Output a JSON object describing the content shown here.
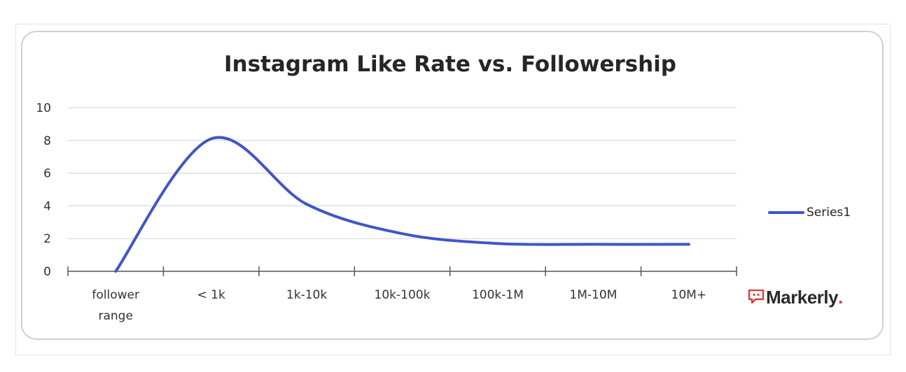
{
  "chart_data": {
    "type": "line",
    "title": "Instagram Like Rate vs. Followership",
    "xlabel": "",
    "ylabel": "",
    "categories": [
      "follower range",
      "< 1k",
      "1k-10k",
      "10k-100k",
      "100k-1M",
      "1M-10M",
      "10M+"
    ],
    "series": [
      {
        "name": "Series1",
        "values": [
          0,
          8.1,
          4.1,
          2.3,
          1.7,
          1.65,
          1.65
        ]
      }
    ],
    "ylim": [
      0,
      10
    ],
    "yticks": [
      0,
      2,
      4,
      6,
      8,
      10
    ],
    "grid": true,
    "smooth": true,
    "legend_position": "right",
    "line_color": "#4055c9"
  },
  "branding": {
    "logo_text": "Markerly",
    "logo_dot": ".",
    "accent_color": "#e03a3a"
  }
}
